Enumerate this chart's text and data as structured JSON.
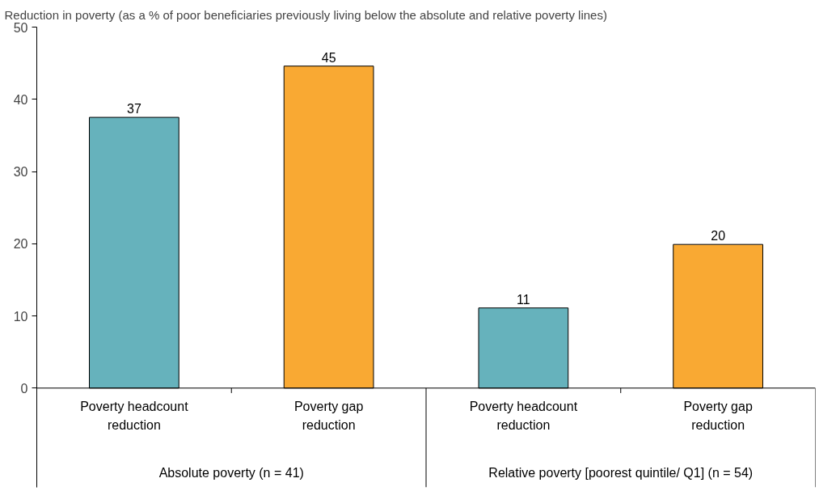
{
  "chart_data": {
    "type": "bar",
    "title": "Reduction in poverty (as a % of poor beneficiaries previously living below the  absolute and relative poverty lines)",
    "categories": [
      "Poverty headcount\nreduction",
      "Poverty gap\nreduction",
      "Poverty headcount\nreduction",
      "Poverty gap\nreduction"
    ],
    "values": [
      37.5,
      44.6,
      11.1,
      19.9
    ],
    "colors": [
      "#66b2bc",
      "#f9a933",
      "#66b2bc",
      "#f9a933"
    ],
    "value_labels": [
      "37",
      "45",
      "11",
      "20"
    ],
    "ylim": [
      0,
      50
    ],
    "yticks": [
      0,
      10,
      20,
      30,
      40,
      50
    ],
    "grid": false,
    "annotations": [
      "Absolute poverty (n = 41)",
      "Relative poverty [poorest quintile/ Q1] (n = 54)"
    ]
  }
}
